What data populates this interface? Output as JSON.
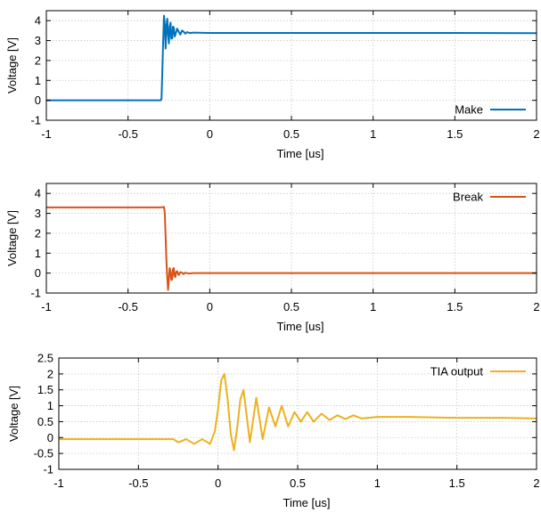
{
  "chart_data": [
    {
      "type": "line",
      "xlabel": "Time [us]",
      "ylabel": "Voltage [V]",
      "xlim": [
        -1,
        2
      ],
      "ylim": [
        -1,
        4.5
      ],
      "xticks": [
        -1,
        -0.5,
        0,
        0.5,
        1,
        1.5,
        2
      ],
      "xtick_labels": [
        "-1",
        "-0.5",
        "0",
        "0.5",
        "1",
        "1.5",
        "2"
      ],
      "yticks": [
        -1,
        0,
        1,
        2,
        3,
        4
      ],
      "ytick_labels": [
        "-1",
        "0",
        "1",
        "2",
        "3",
        "4"
      ],
      "grid": true,
      "legend": "bottom-right",
      "series": [
        {
          "name": "Make",
          "color": "#0072bd",
          "x": [
            -1,
            -0.5,
            -0.3,
            -0.295,
            -0.29,
            -0.285,
            -0.28,
            -0.275,
            -0.27,
            -0.265,
            -0.26,
            -0.255,
            -0.25,
            -0.245,
            -0.24,
            -0.235,
            -0.23,
            -0.225,
            -0.22,
            -0.215,
            -0.21,
            -0.2,
            -0.19,
            -0.18,
            -0.17,
            -0.16,
            -0.15,
            -0.14,
            -0.12,
            -0.1,
            0,
            0.5,
            1,
            1.5,
            2
          ],
          "y": [
            0.0,
            0.0,
            0.0,
            0.1,
            1.5,
            3.0,
            4.25,
            3.8,
            2.6,
            3.7,
            4.1,
            3.3,
            2.85,
            3.7,
            3.9,
            3.1,
            3.1,
            3.7,
            3.65,
            3.2,
            3.3,
            3.6,
            3.45,
            3.3,
            3.5,
            3.45,
            3.35,
            3.42,
            3.38,
            3.4,
            3.38,
            3.38,
            3.38,
            3.38,
            3.37
          ]
        }
      ]
    },
    {
      "type": "line",
      "xlabel": "Time [us]",
      "ylabel": "Voltage [V]",
      "xlim": [
        -1,
        2
      ],
      "ylim": [
        -1,
        4.5
      ],
      "xticks": [
        -1,
        -0.5,
        0,
        0.5,
        1,
        1.5,
        2
      ],
      "xtick_labels": [
        "-1",
        "-0.5",
        "0",
        "0.5",
        "1",
        "1.5",
        "2"
      ],
      "yticks": [
        -1,
        0,
        1,
        2,
        3,
        4
      ],
      "ytick_labels": [
        "-1",
        "0",
        "1",
        "2",
        "3",
        "4"
      ],
      "grid": true,
      "legend": "top-right",
      "series": [
        {
          "name": "Break",
          "color": "#d95319",
          "x": [
            -1,
            -0.5,
            -0.3,
            -0.28,
            -0.275,
            -0.27,
            -0.265,
            -0.26,
            -0.255,
            -0.25,
            -0.245,
            -0.24,
            -0.235,
            -0.23,
            -0.225,
            -0.22,
            -0.215,
            -0.21,
            -0.205,
            -0.2,
            -0.19,
            -0.18,
            -0.17,
            -0.16,
            -0.15,
            -0.13,
            -0.1,
            0,
            0.5,
            1,
            1.5,
            2
          ],
          "y": [
            3.3,
            3.3,
            3.3,
            3.32,
            3.0,
            1.8,
            0.6,
            -0.2,
            -0.85,
            -0.3,
            0.25,
            0.1,
            -0.35,
            -0.3,
            0.2,
            0.25,
            -0.15,
            -0.2,
            0.05,
            0.1,
            -0.1,
            0.05,
            0.02,
            -0.05,
            0.02,
            -0.02,
            0.0,
            0.0,
            0.0,
            0.0,
            0.0,
            0.0
          ]
        }
      ]
    },
    {
      "type": "line",
      "xlabel": "Time [us]",
      "ylabel": "Voltage [V]",
      "xlim": [
        -1,
        2
      ],
      "ylim": [
        -1,
        2.5
      ],
      "xticks": [
        -1,
        -0.5,
        0,
        0.5,
        1,
        1.5,
        2
      ],
      "xtick_labels": [
        "-1",
        "-0.5",
        "0",
        "0.5",
        "1",
        "1.5",
        "2"
      ],
      "yticks": [
        -1,
        -0.5,
        0,
        0.5,
        1,
        1.5,
        2,
        2.5
      ],
      "ytick_labels": [
        "-1",
        "-0.5",
        "0",
        "0.5",
        "1",
        "1.5",
        "2",
        "2.5"
      ],
      "grid": true,
      "legend": "top-right",
      "series": [
        {
          "name": "TIA output",
          "color": "#edb120",
          "x": [
            -1,
            -0.5,
            -0.28,
            -0.25,
            -0.2,
            -0.15,
            -0.1,
            -0.05,
            -0.02,
            0.0,
            0.02,
            0.04,
            0.06,
            0.08,
            0.1,
            0.12,
            0.14,
            0.16,
            0.2,
            0.24,
            0.28,
            0.32,
            0.36,
            0.4,
            0.44,
            0.48,
            0.52,
            0.56,
            0.6,
            0.65,
            0.7,
            0.75,
            0.8,
            0.85,
            0.9,
            1.0,
            1.2,
            1.5,
            1.8,
            2.0
          ],
          "y": [
            -0.05,
            -0.05,
            -0.05,
            -0.15,
            -0.05,
            -0.2,
            -0.05,
            -0.2,
            0.2,
            0.9,
            1.8,
            2.0,
            1.2,
            0.1,
            -0.4,
            0.3,
            1.2,
            1.5,
            -0.15,
            1.25,
            -0.05,
            0.95,
            0.35,
            1.0,
            0.35,
            0.8,
            0.5,
            0.8,
            0.5,
            0.75,
            0.55,
            0.7,
            0.58,
            0.7,
            0.6,
            0.65,
            0.65,
            0.62,
            0.62,
            0.6
          ]
        }
      ]
    }
  ]
}
